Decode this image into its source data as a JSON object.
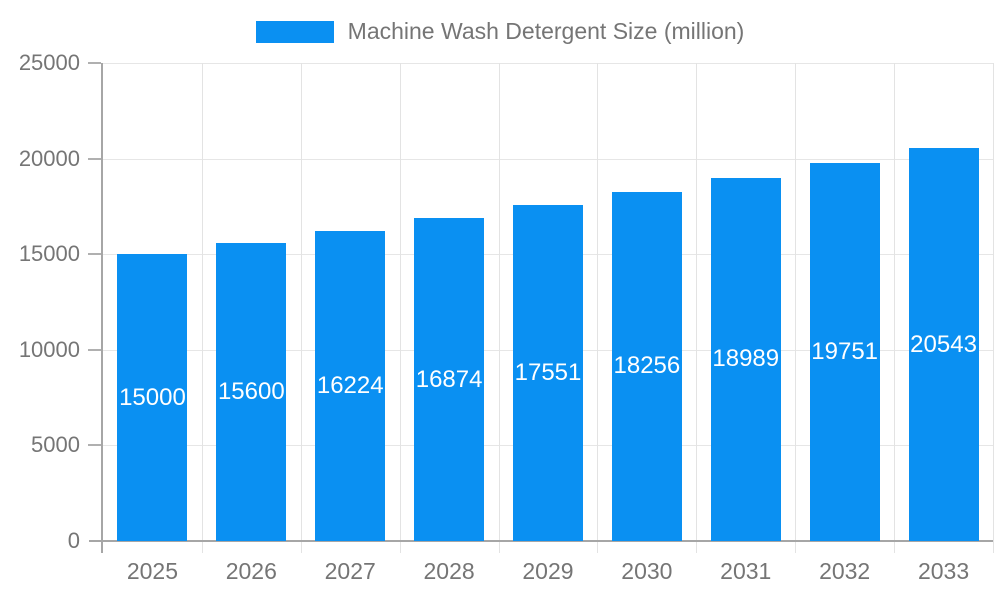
{
  "legend": {
    "label": "Machine Wash Detergent Size (million)"
  },
  "chart_data": {
    "type": "bar",
    "title": "Machine Wash Detergent Size (million)",
    "categories": [
      "2025",
      "2026",
      "2027",
      "2028",
      "2029",
      "2030",
      "2031",
      "2032",
      "2033"
    ],
    "values": [
      15000,
      15600,
      16224,
      16874,
      17551,
      18256,
      18989,
      19751,
      20543
    ],
    "bar_labels": [
      "15000",
      "15600",
      "16224",
      "16874",
      "17551",
      "18256",
      "18989",
      "19751",
      "20543"
    ],
    "xlabel": "",
    "ylabel": "",
    "ylim": [
      0,
      25000
    ],
    "yticks": [
      0,
      5000,
      10000,
      15000,
      20000,
      25000
    ],
    "ytick_labels": [
      "0",
      "5000",
      "10000",
      "15000",
      "20000",
      "25000"
    ],
    "grid": true,
    "legend_position": "top",
    "colors": {
      "bar": "#0a90f2",
      "bar_label_text": "#ffffff",
      "axis_line": "#a6a6a6",
      "gridline": "#e6e6e6",
      "axis_text": "#757575"
    }
  }
}
